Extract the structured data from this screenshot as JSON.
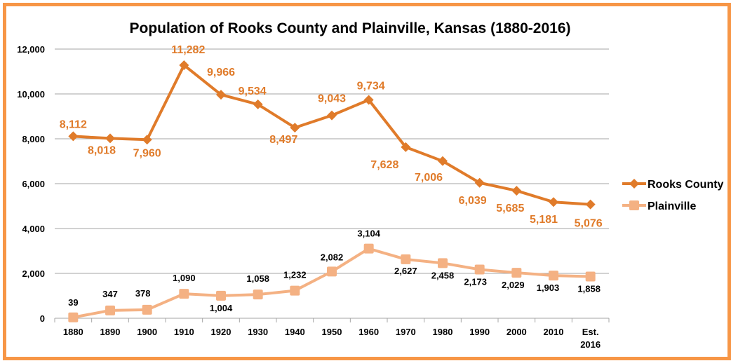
{
  "chart_data": {
    "type": "line",
    "title": "Population of Rooks County and Plainville, Kansas (1880-2016)",
    "xlabel": "",
    "ylabel": "",
    "ylim": [
      0,
      12000
    ],
    "yticks": [
      0,
      2000,
      4000,
      6000,
      8000,
      10000,
      12000
    ],
    "ytick_labels": [
      "0",
      "2,000",
      "4,000",
      "6,000",
      "8,000",
      "10,000",
      "12,000"
    ],
    "grid": true,
    "legend_position": "right",
    "categories": [
      "1880",
      "1890",
      "1900",
      "1910",
      "1920",
      "1930",
      "1940",
      "1950",
      "1960",
      "1970",
      "1980",
      "1990",
      "2000",
      "2010",
      "Est. 2016"
    ],
    "series": [
      {
        "name": "Rooks County",
        "color": "#E07B2A",
        "marker": "diamond",
        "values": [
          8112,
          8018,
          7960,
          11282,
          9966,
          9534,
          8497,
          9043,
          9734,
          7628,
          7006,
          6039,
          5685,
          5181,
          5076
        ],
        "labels": [
          "8,112",
          "8,018",
          "7,960",
          "11,282",
          "9,966",
          "9,534",
          "8,497",
          "9,043",
          "9,734",
          "7,628",
          "7,006",
          "6,039",
          "5,685",
          "5,181",
          "5,076"
        ]
      },
      {
        "name": "Plainville",
        "color": "#F4B183",
        "marker": "square",
        "values": [
          39,
          347,
          378,
          1090,
          1004,
          1058,
          1232,
          2082,
          3104,
          2627,
          2458,
          2173,
          2029,
          1903,
          1858
        ],
        "labels": [
          "39",
          "347",
          "378",
          "1,090",
          "1,004",
          "1,058",
          "1,232",
          "2,082",
          "3,104",
          "2,627",
          "2,458",
          "2,173",
          "2,029",
          "1,903",
          "1,858"
        ]
      }
    ]
  }
}
